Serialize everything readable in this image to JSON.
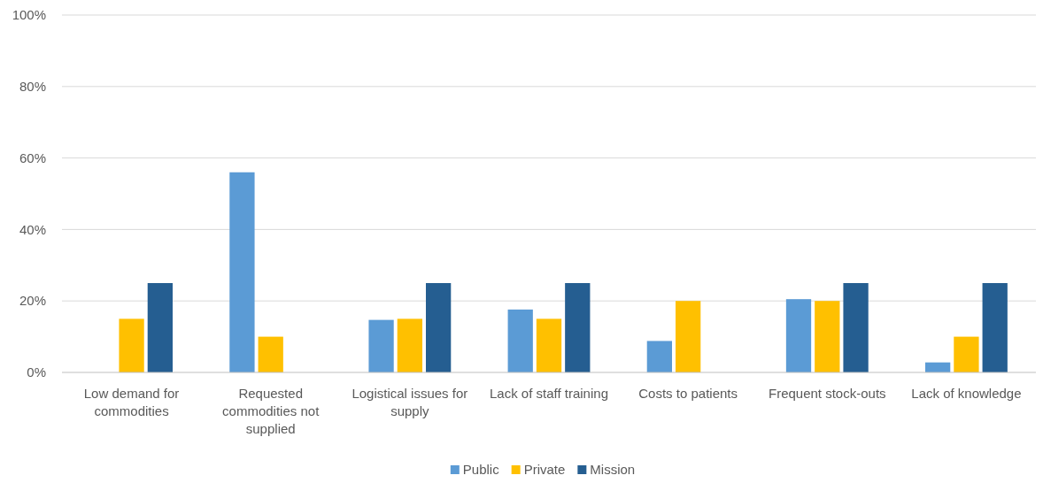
{
  "chart_data": {
    "type": "bar",
    "categories": [
      "Low demand for commodities",
      "Requested commodities  not supplied",
      "Logistical issues for supply",
      "Lack of staff training",
      "Costs to patients",
      "Frequent stock-outs",
      "Lack of knowledge"
    ],
    "series": [
      {
        "name": "Public",
        "color": "#5b9bd5",
        "values": [
          0,
          56,
          14.7,
          17.6,
          8.8,
          20.5,
          2.8
        ]
      },
      {
        "name": "Private",
        "color": "#ffc000",
        "values": [
          15,
          10,
          15,
          15,
          20,
          20,
          10
        ]
      },
      {
        "name": "Mission",
        "color": "#255e91",
        "values": [
          25,
          0,
          25,
          25,
          0,
          25,
          25
        ]
      }
    ],
    "ylim": [
      0,
      100
    ],
    "yticks": [
      {
        "value": 0,
        "label": "0%"
      },
      {
        "value": 20,
        "label": "20%"
      },
      {
        "value": 40,
        "label": "40%"
      },
      {
        "value": 60,
        "label": "60%"
      },
      {
        "value": 80,
        "label": "80%"
      },
      {
        "value": 100,
        "label": "100%"
      }
    ],
    "grid": "y",
    "legend": "bottom"
  }
}
